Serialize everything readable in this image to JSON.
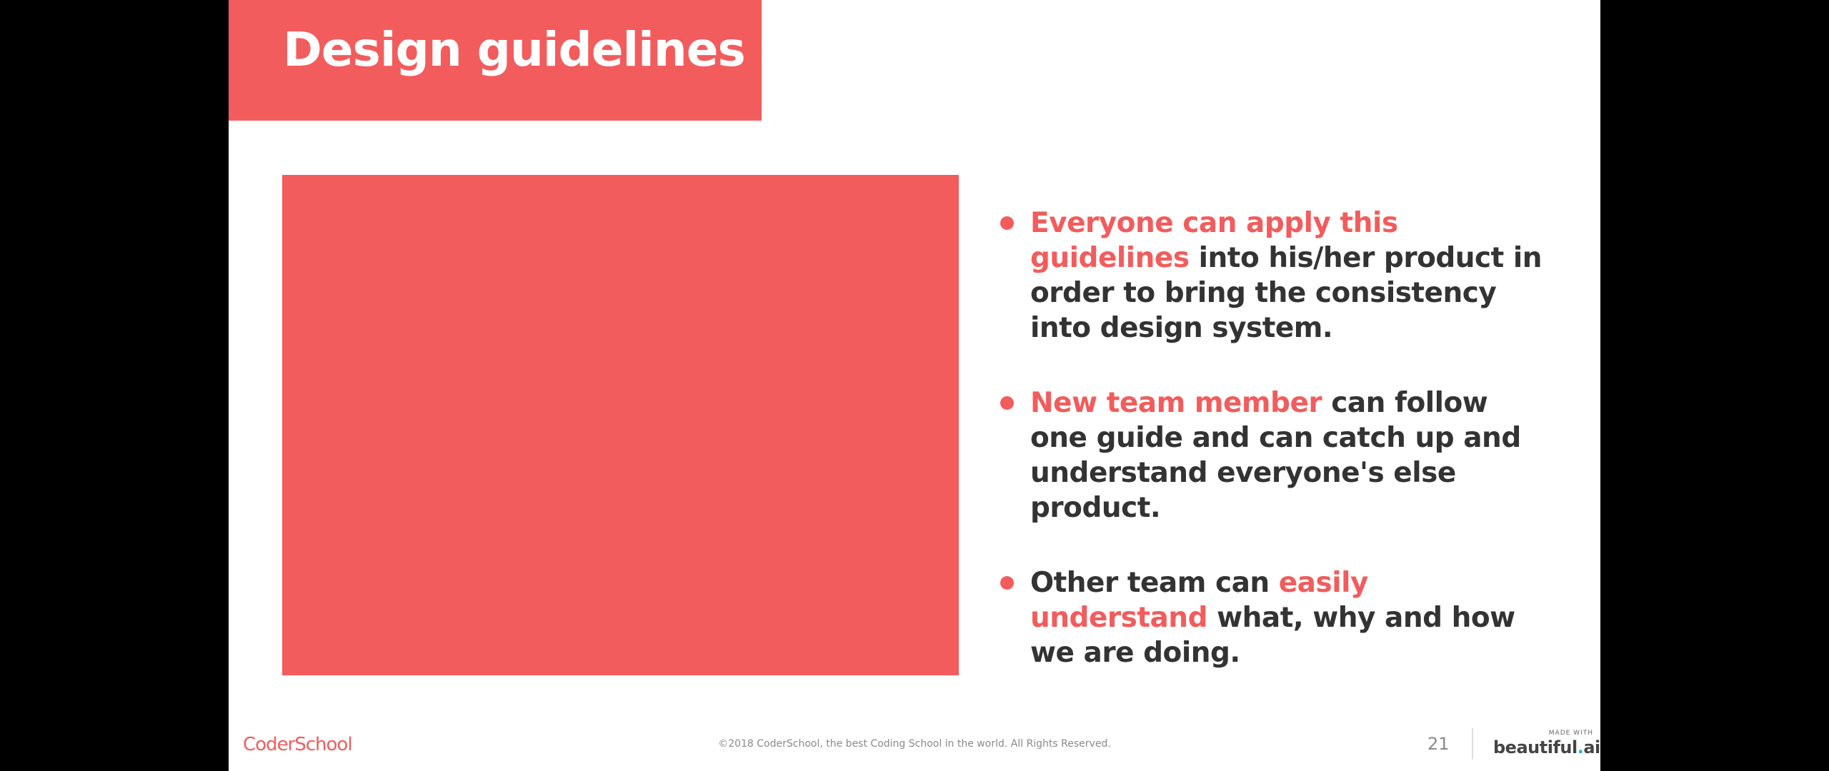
{
  "slide": {
    "title": "Design guidelines",
    "page_number": "21",
    "bullets": [
      {
        "highlight": "Everyone can apply this guidelines",
        "text": " into his/her product in order to bring the consistency into design system."
      },
      {
        "highlight": "New team member",
        "text": " can follow one guide and can catch up and understand everyone's else product."
      },
      {
        "prefix": "Other team can ",
        "highlight": "easily understand",
        "text": " what, why and how we are doing."
      }
    ]
  },
  "footer": {
    "logo_text": "CoderSchool",
    "copyright": "©2018 CoderSchool, the best Coding School in the world. All Rights Reserved.",
    "made_with_caption": "MADE WITH",
    "made_with_brand_main": "beautiful",
    "made_with_brand_dot": ".",
    "made_with_brand_suffix": "ai"
  },
  "colors": {
    "accent": "#f25c5c",
    "body_text": "#333333",
    "background": "#ffffff",
    "letterbox": "#000000"
  }
}
